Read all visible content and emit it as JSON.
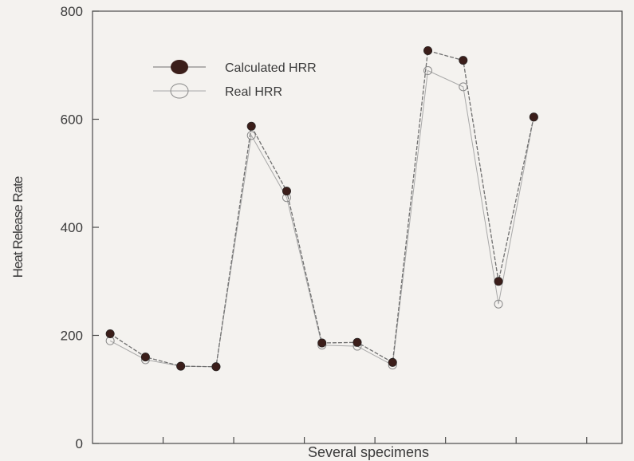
{
  "chart_data": {
    "type": "line",
    "title": "",
    "xlabel": "Several specimens",
    "ylabel": "Heat Release Rate",
    "ylim": [
      0,
      800
    ],
    "yticks": [
      0,
      200,
      400,
      600,
      800
    ],
    "x": [
      1,
      2,
      3,
      4,
      5,
      6,
      7,
      8,
      9,
      10,
      11,
      12,
      13
    ],
    "xlim": [
      0.5,
      15.5
    ],
    "xticks": [
      2.5,
      4.5,
      6.5,
      8.5,
      10.5,
      12.5,
      14.5
    ],
    "grid": false,
    "legend_position": "top-left",
    "series": [
      {
        "name": "Calculated HRR",
        "marker": "filled-circle",
        "color": "#3b1e1a",
        "line_color": "#6f6f6f",
        "values": [
          203,
          160,
          143,
          142,
          587,
          467,
          186,
          187,
          150,
          727,
          709,
          300,
          604
        ]
      },
      {
        "name": "Real HRR",
        "marker": "open-circle",
        "color": "#8a8a8a",
        "line_color": "#a8a8a8",
        "values": [
          190,
          155,
          143,
          142,
          570,
          455,
          182,
          180,
          145,
          690,
          660,
          258,
          604
        ]
      }
    ]
  }
}
